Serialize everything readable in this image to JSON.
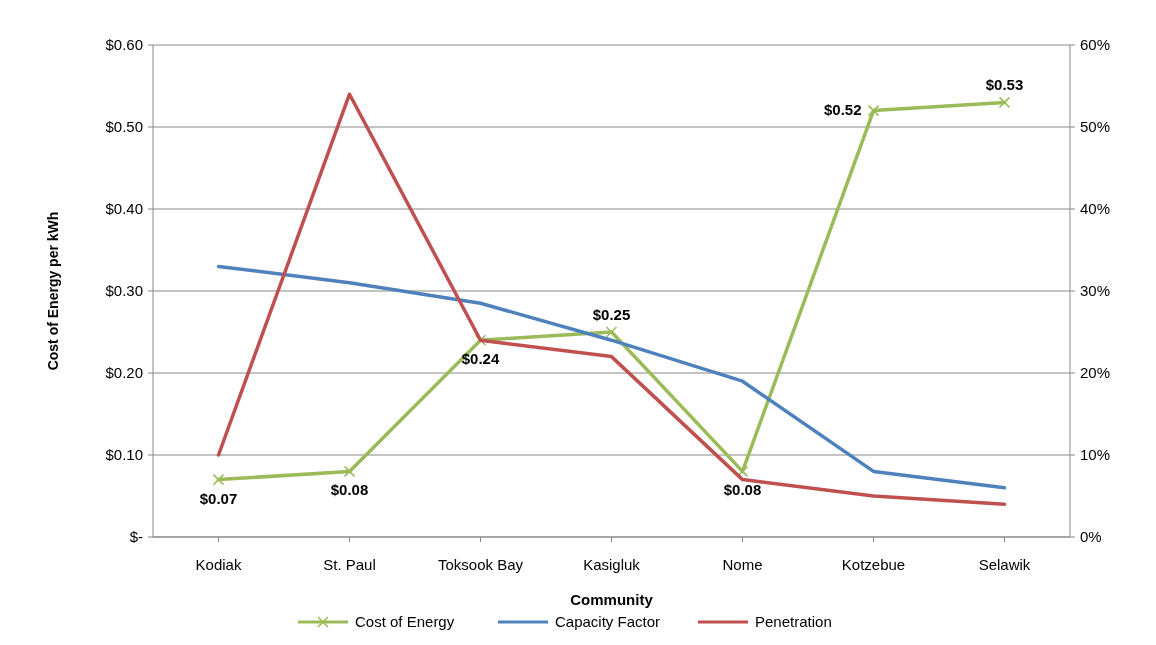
{
  "chart_data": {
    "type": "line",
    "xlabel": "Community",
    "ylabel": "Cost of Energy per kWh",
    "categories": [
      "Kodiak",
      "St. Paul",
      "Toksook Bay",
      "Kasigluk",
      "Nome",
      "Kotzebue",
      "Selawik"
    ],
    "series": [
      {
        "name": "Cost of Energy",
        "color": "#9bbb59",
        "marker": "cross",
        "values": [
          0.07,
          0.08,
          0.24,
          0.25,
          0.08,
          0.52,
          0.53
        ],
        "value_labels": [
          "$0.07",
          "$0.08",
          "$0.24",
          "$0.25",
          "$0.08",
          "$0.52",
          "$0.53"
        ]
      },
      {
        "name": "Capacity Factor",
        "color": "#4f81bd",
        "marker": "none",
        "axis": "y2",
        "values": [
          33,
          31,
          28.5,
          24,
          19,
          8,
          6
        ]
      },
      {
        "name": "Penetration",
        "color": "#c0504d",
        "marker": "none",
        "axis": "y2",
        "values": [
          10,
          54,
          24,
          22,
          7,
          5,
          4
        ]
      }
    ],
    "ylim": [
      0,
      0.6
    ],
    "yticks": [
      {
        "value": 0,
        "label": "$-"
      },
      {
        "value": 0.1,
        "label": "$0.10"
      },
      {
        "value": 0.2,
        "label": "$0.20"
      },
      {
        "value": 0.3,
        "label": "$0.30"
      },
      {
        "value": 0.4,
        "label": "$0.40"
      },
      {
        "value": 0.5,
        "label": "$0.50"
      },
      {
        "value": 0.6,
        "label": "$0.60"
      }
    ],
    "y2lim": [
      0,
      60
    ],
    "y2ticks": [
      {
        "value": 0,
        "label": "0%"
      },
      {
        "value": 10,
        "label": "10%"
      },
      {
        "value": 20,
        "label": "20%"
      },
      {
        "value": 30,
        "label": "30%"
      },
      {
        "value": 40,
        "label": "40%"
      },
      {
        "value": 50,
        "label": "50%"
      },
      {
        "value": 60,
        "label": "60%"
      }
    ],
    "grid": "y",
    "legend": "bottom",
    "line_style": "solid"
  }
}
